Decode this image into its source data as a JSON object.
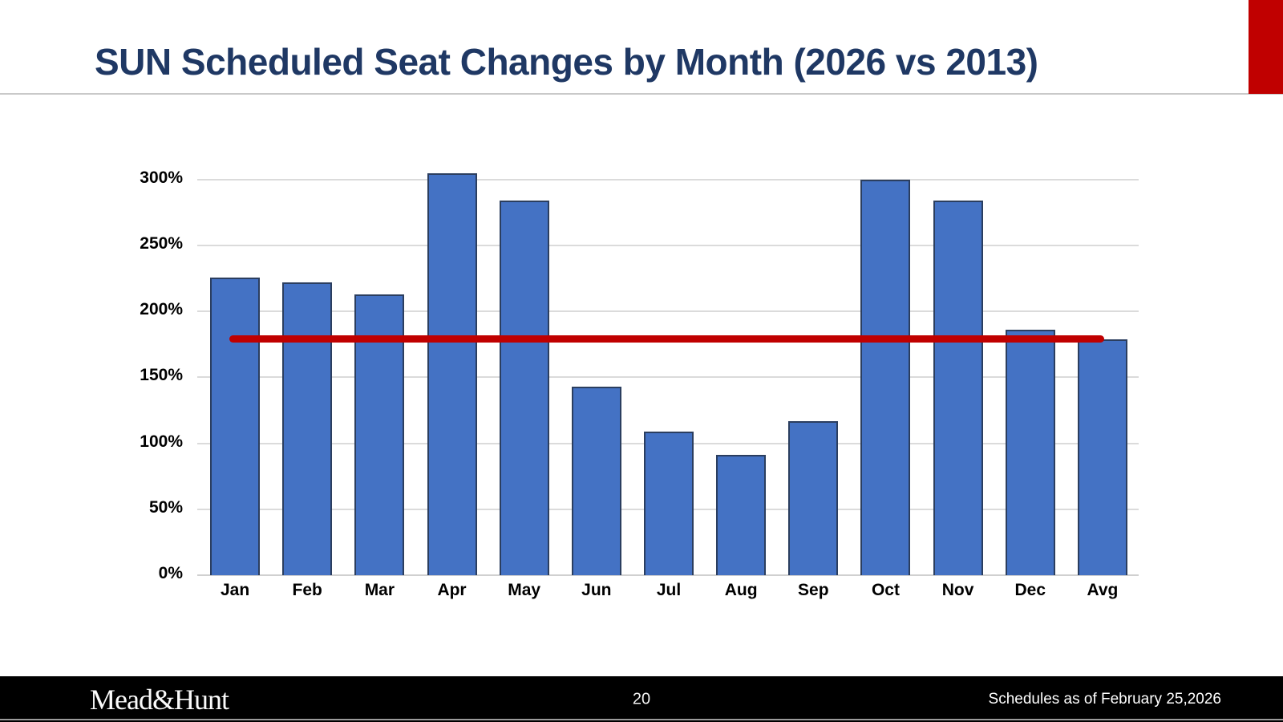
{
  "slide": {
    "title": "SUN Scheduled Seat Changes by Month (2026 vs 2013)",
    "title_color": "#1F3864",
    "accent_color": "#C00000"
  },
  "chart_data": {
    "type": "bar",
    "title": "SUN Scheduled Seat Changes by Month (2026 vs 2013)",
    "categories": [
      "Jan",
      "Feb",
      "Mar",
      "Apr",
      "May",
      "Jun",
      "Jul",
      "Aug",
      "Sep",
      "Oct",
      "Nov",
      "Dec",
      "Avg"
    ],
    "values": [
      226,
      222,
      213,
      305,
      284,
      143,
      109,
      91,
      117,
      300,
      284,
      186,
      179
    ],
    "value_unit": "%",
    "xlabel": "",
    "ylabel": "",
    "ylim": [
      0,
      320
    ],
    "yticks": [
      0,
      50,
      100,
      150,
      200,
      250,
      300
    ],
    "ytick_labels": [
      "0%",
      "50%",
      "100%",
      "150%",
      "200%",
      "250%",
      "300%"
    ],
    "grid": true,
    "legend": "none",
    "bar_color": "#4472C4",
    "bar_border_color": "#2B3E5F",
    "average_line": {
      "value": 179,
      "color": "#C00000",
      "from_category": "Jan",
      "to_category": "Avg"
    }
  },
  "footer": {
    "logo_text": "Mead&Hunt",
    "page_number": "20",
    "note": "Schedules as of February 25,2026"
  }
}
